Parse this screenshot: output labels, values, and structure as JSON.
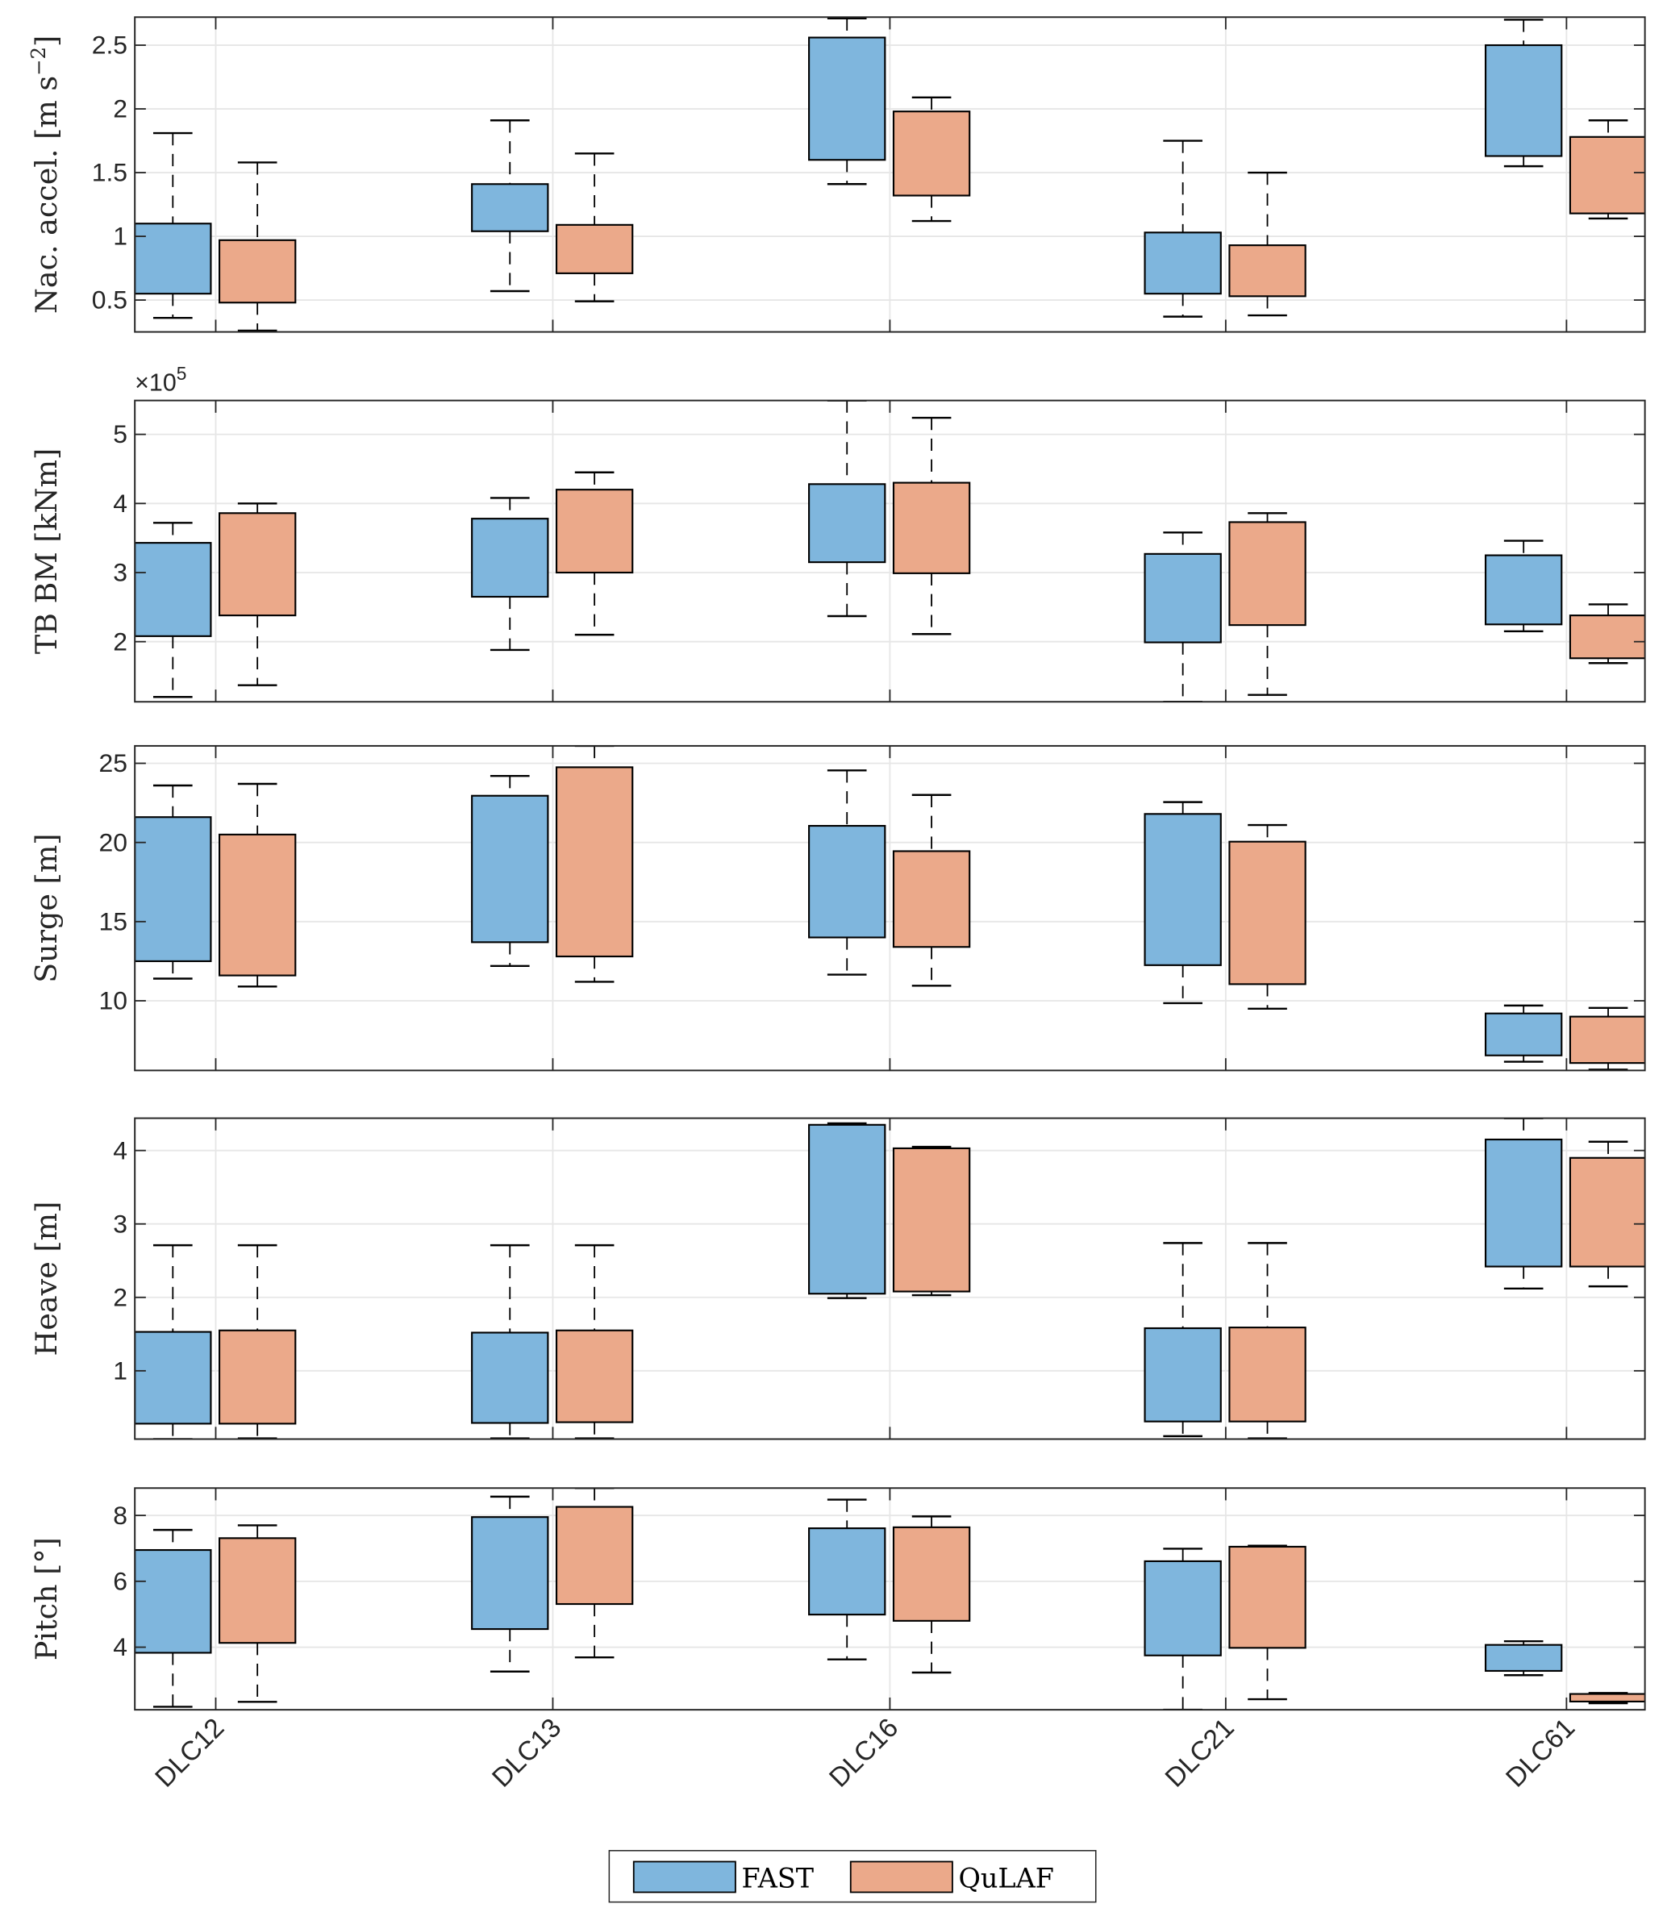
{
  "chart_data": {
    "type": "box",
    "categories": [
      "DLC12",
      "DLC13",
      "DLC16",
      "DLC21",
      "DLC61"
    ],
    "legend": {
      "entries": [
        {
          "name": "FAST",
          "color": "#7FB6DD"
        },
        {
          "name": "QuLAF",
          "color": "#EBA98A"
        }
      ],
      "placement": "bottom-center"
    },
    "grid": true,
    "panels": [
      {
        "id": "nac_accel",
        "ylabel": "Nac. accel. [m s",
        "ylabel_sup": "−2",
        "ylabel_tail": "]",
        "ylim": [
          0.25,
          2.72
        ],
        "yticks": [
          0.5,
          1,
          1.5,
          2,
          2.5
        ],
        "ytick_labels": [
          "0.5",
          "1",
          "1.5",
          "2",
          "2.5"
        ],
        "multiplier": "",
        "series": [
          {
            "name": "FAST",
            "boxes": [
              {
                "lower": 0.36,
                "q1": 0.55,
                "q3": 1.1,
                "upper": 1.81
              },
              {
                "lower": 0.57,
                "q1": 1.04,
                "q3": 1.41,
                "upper": 1.91
              },
              {
                "lower": 1.41,
                "q1": 1.6,
                "q3": 2.56,
                "upper": 2.71
              },
              {
                "lower": 0.37,
                "q1": 0.55,
                "q3": 1.03,
                "upper": 1.75
              },
              {
                "lower": 1.55,
                "q1": 1.63,
                "q3": 2.5,
                "upper": 2.7
              }
            ]
          },
          {
            "name": "QuLAF",
            "boxes": [
              {
                "lower": 0.26,
                "q1": 0.48,
                "q3": 0.97,
                "upper": 1.58
              },
              {
                "lower": 0.49,
                "q1": 0.71,
                "q3": 1.09,
                "upper": 1.65
              },
              {
                "lower": 1.12,
                "q1": 1.32,
                "q3": 1.98,
                "upper": 2.09
              },
              {
                "lower": 0.38,
                "q1": 0.53,
                "q3": 0.93,
                "upper": 1.5
              },
              {
                "lower": 1.14,
                "q1": 1.18,
                "q3": 1.78,
                "upper": 1.91
              }
            ]
          }
        ]
      },
      {
        "id": "tb_bm",
        "ylabel": "TB BM [kNm]",
        "ylabel_sup": "",
        "ylabel_tail": "",
        "ylim": [
          1.13,
          5.49
        ],
        "yticks": [
          2,
          3,
          4,
          5
        ],
        "ytick_labels": [
          "2",
          "3",
          "4",
          "5"
        ],
        "multiplier": "×10",
        "multiplier_exp": "5",
        "series": [
          {
            "name": "FAST",
            "boxes": [
              {
                "lower": 1.2,
                "q1": 2.08,
                "q3": 3.43,
                "upper": 3.72
              },
              {
                "lower": 1.88,
                "q1": 2.65,
                "q3": 3.78,
                "upper": 4.08
              },
              {
                "lower": 2.37,
                "q1": 3.15,
                "q3": 4.28,
                "upper": 5.49
              },
              {
                "lower": 1.13,
                "q1": 1.99,
                "q3": 3.27,
                "upper": 3.58
              },
              {
                "lower": 2.15,
                "q1": 2.25,
                "q3": 3.25,
                "upper": 3.46
              }
            ]
          },
          {
            "name": "QuLAF",
            "boxes": [
              {
                "lower": 1.37,
                "q1": 2.38,
                "q3": 3.86,
                "upper": 4.0
              },
              {
                "lower": 2.1,
                "q1": 3.0,
                "q3": 4.2,
                "upper": 4.45
              },
              {
                "lower": 2.11,
                "q1": 2.99,
                "q3": 4.3,
                "upper": 5.24
              },
              {
                "lower": 1.23,
                "q1": 2.24,
                "q3": 3.73,
                "upper": 3.86
              },
              {
                "lower": 1.69,
                "q1": 1.76,
                "q3": 2.38,
                "upper": 2.54
              }
            ]
          }
        ]
      },
      {
        "id": "surge",
        "ylabel": "Surge [m]",
        "ylabel_sup": "",
        "ylabel_tail": "",
        "ylim": [
          5.6,
          26.1
        ],
        "yticks": [
          10,
          15,
          20,
          25
        ],
        "ytick_labels": [
          "10",
          "15",
          "20",
          "25"
        ],
        "multiplier": "",
        "series": [
          {
            "name": "FAST",
            "boxes": [
              {
                "lower": 11.4,
                "q1": 12.5,
                "q3": 21.6,
                "upper": 23.6
              },
              {
                "lower": 12.2,
                "q1": 13.7,
                "q3": 22.95,
                "upper": 24.2
              },
              {
                "lower": 11.65,
                "q1": 14.0,
                "q3": 21.05,
                "upper": 24.55
              },
              {
                "lower": 9.85,
                "q1": 12.25,
                "q3": 21.8,
                "upper": 22.55
              },
              {
                "lower": 6.15,
                "q1": 6.55,
                "q3": 9.2,
                "upper": 9.7
              }
            ]
          },
          {
            "name": "QuLAF",
            "boxes": [
              {
                "lower": 10.9,
                "q1": 11.6,
                "q3": 20.5,
                "upper": 23.7
              },
              {
                "lower": 11.2,
                "q1": 12.8,
                "q3": 24.75,
                "upper": 26.1
              },
              {
                "lower": 10.95,
                "q1": 13.4,
                "q3": 19.45,
                "upper": 23.0
              },
              {
                "lower": 9.5,
                "q1": 11.05,
                "q3": 20.05,
                "upper": 21.1
              },
              {
                "lower": 5.65,
                "q1": 6.07,
                "q3": 9.0,
                "upper": 9.55
              }
            ]
          }
        ]
      },
      {
        "id": "heave",
        "ylabel": "Heave [m]",
        "ylabel_sup": "",
        "ylabel_tail": "",
        "ylim": [
          0.07,
          4.44
        ],
        "yticks": [
          1,
          2,
          3,
          4
        ],
        "ytick_labels": [
          "1",
          "2",
          "3",
          "4"
        ],
        "multiplier": "",
        "series": [
          {
            "name": "FAST",
            "boxes": [
              {
                "lower": 0.07,
                "q1": 0.28,
                "q3": 1.53,
                "upper": 2.71
              },
              {
                "lower": 0.08,
                "q1": 0.29,
                "q3": 1.52,
                "upper": 2.71
              },
              {
                "lower": 1.99,
                "q1": 2.05,
                "q3": 4.35,
                "upper": 4.37
              },
              {
                "lower": 0.11,
                "q1": 0.31,
                "q3": 1.58,
                "upper": 2.74
              },
              {
                "lower": 2.12,
                "q1": 2.42,
                "q3": 4.15,
                "upper": 4.44
              }
            ]
          },
          {
            "name": "QuLAF",
            "boxes": [
              {
                "lower": 0.08,
                "q1": 0.28,
                "q3": 1.55,
                "upper": 2.71
              },
              {
                "lower": 0.08,
                "q1": 0.3,
                "q3": 1.55,
                "upper": 2.71
              },
              {
                "lower": 2.03,
                "q1": 2.08,
                "q3": 4.03,
                "upper": 4.05
              },
              {
                "lower": 0.08,
                "q1": 0.31,
                "q3": 1.59,
                "upper": 2.74
              },
              {
                "lower": 2.15,
                "q1": 2.42,
                "q3": 3.9,
                "upper": 4.12
              }
            ]
          }
        ]
      },
      {
        "id": "pitch",
        "ylabel": "Pitch [°]",
        "ylabel_sup": "",
        "ylabel_tail": "",
        "ylim": [
          2.1,
          8.83
        ],
        "yticks": [
          4,
          6,
          8
        ],
        "ytick_labels": [
          "4",
          "6",
          "8"
        ],
        "multiplier": "",
        "series": [
          {
            "name": "FAST",
            "boxes": [
              {
                "lower": 2.19,
                "q1": 3.83,
                "q3": 6.95,
                "upper": 7.56
              },
              {
                "lower": 3.26,
                "q1": 4.55,
                "q3": 7.95,
                "upper": 8.57
              },
              {
                "lower": 3.63,
                "q1": 4.99,
                "q3": 7.61,
                "upper": 8.48
              },
              {
                "lower": 2.1,
                "q1": 3.75,
                "q3": 6.61,
                "upper": 6.99
              },
              {
                "lower": 3.15,
                "q1": 3.28,
                "q3": 4.07,
                "upper": 4.18
              }
            ]
          },
          {
            "name": "QuLAF",
            "boxes": [
              {
                "lower": 2.34,
                "q1": 4.13,
                "q3": 7.31,
                "upper": 7.7
              },
              {
                "lower": 3.69,
                "q1": 5.31,
                "q3": 8.26,
                "upper": 8.83
              },
              {
                "lower": 3.23,
                "q1": 4.8,
                "q3": 7.64,
                "upper": 7.97
              },
              {
                "lower": 2.42,
                "q1": 3.98,
                "q3": 7.05,
                "upper": 7.08
              },
              {
                "lower": 2.3,
                "q1": 2.35,
                "q3": 2.58,
                "upper": 2.61
              }
            ]
          }
        ]
      }
    ]
  }
}
